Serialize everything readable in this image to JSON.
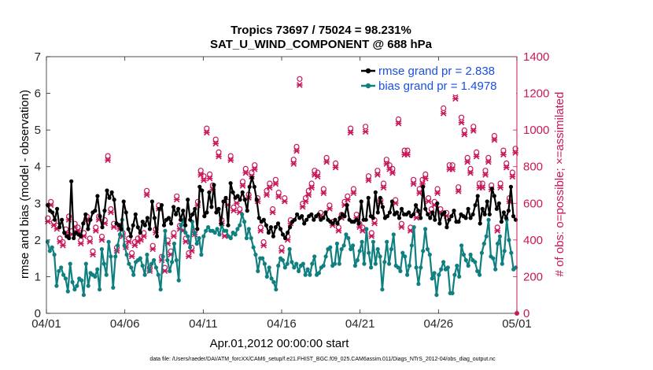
{
  "chart_data": {
    "type": "line",
    "title": "Tropics 73697 / 75024 = 98.231%",
    "subtitle": "SAT_U_WIND_COMPONENT @ 688 hPa",
    "xlabel": "Apr.01,2012 00:00:00 start",
    "ylabel_left": "rmse and bias (model - observation)",
    "ylabel_right": "# of obs: o=possible; ×=assimilated",
    "x_ticks": [
      "04/01",
      "04/06",
      "04/11",
      "04/16",
      "04/21",
      "04/26",
      "05/01"
    ],
    "x_range_days": [
      0,
      30
    ],
    "y_left_range": [
      0,
      7
    ],
    "y_left_ticks": [
      "0",
      "1",
      "2",
      "3",
      "4",
      "5",
      "6",
      "7"
    ],
    "y_right_range": [
      0,
      1400
    ],
    "y_right_ticks": [
      "0",
      "200",
      "400",
      "600",
      "800",
      "1000",
      "1200",
      "1400"
    ],
    "series": [
      {
        "name": "rmse grand pr = 2.838",
        "axis": "left",
        "color": "#000000",
        "values": [
          2.95,
          2.8,
          2.75,
          2.55,
          2.85,
          2.35,
          2.55,
          2.2,
          2.1,
          2.05,
          3.6,
          2.05,
          2.2,
          2.15,
          2.1,
          2.45,
          2.7,
          2.3,
          2.55,
          2.75,
          2.8,
          3.2,
          2.65,
          2.35,
          2.8,
          3.35,
          3.15,
          3.3,
          3.1,
          2.45,
          2.4,
          2.3,
          3.05,
          2.75,
          2.3,
          2.1,
          2.4,
          2.7,
          2.35,
          2.2,
          2.5,
          2.4,
          2.6,
          2.3,
          3.05,
          2.6,
          2.1,
          2.85,
          2.95,
          2.4,
          2.55,
          2.6,
          2.45,
          2.9,
          2.7,
          2.85,
          2.55,
          2.8,
          2.4,
          3.1,
          2.55,
          2.7,
          2.85,
          2.3,
          3.45,
          3.35,
          2.65,
          2.75,
          3.3,
          2.9,
          3.5,
          2.75,
          2.85,
          2.45,
          3.05,
          3.15,
          2.4,
          3.55,
          3.3,
          3.15,
          3.2,
          3.1,
          3.3,
          3.1,
          2.8,
          3.45,
          3.7,
          3.45,
          3.1,
          2.6,
          2.5,
          2.55,
          2.4,
          2.2,
          2.35,
          2.1,
          2.35,
          2.45,
          2.3,
          2.15,
          2.05,
          2.2,
          2.35,
          2.5,
          2.55,
          2.7,
          2.6,
          2.65,
          2.45,
          2.55,
          2.65,
          2.7,
          2.55,
          2.65,
          2.7,
          2.55,
          2.6,
          2.75,
          2.55,
          2.5,
          2.45,
          2.55,
          2.45,
          2.6,
          2.7,
          2.65,
          2.95,
          2.55,
          2.5,
          2.5,
          2.55,
          2.45,
          3.05,
          2.55,
          2.55,
          3.15,
          2.65,
          2.6,
          3.3,
          2.75,
          3.15,
          2.9,
          2.6,
          2.65,
          2.75,
          3.05,
          2.7,
          2.75,
          2.6,
          2.85,
          2.7,
          2.7,
          2.75,
          2.65,
          2.7,
          2.95,
          2.8,
          2.6,
          3.45,
          2.85,
          2.7,
          2.6,
          2.75,
          2.55,
          3.0,
          2.45,
          2.7,
          2.75,
          2.35,
          2.55,
          2.65,
          2.8,
          2.5,
          2.5,
          2.7,
          2.65,
          2.6,
          2.85,
          2.6,
          2.7,
          2.95,
          3.2,
          2.45,
          2.85,
          2.7,
          3.05,
          2.7,
          3.4,
          3.2,
          2.85,
          3.0,
          2.5,
          2.75,
          2.6,
          2.8,
          3.45,
          2.65,
          2.55
        ]
      },
      {
        "name": "bias grand pr = 1.4978",
        "axis": "left",
        "color": "#0f7f7f",
        "values": [
          1.95,
          1.7,
          1.8,
          1.6,
          0.75,
          1.15,
          1.25,
          1.05,
          0.95,
          0.6,
          1.35,
          0.85,
          0.65,
          0.75,
          0.95,
          0.9,
          0.5,
          1.35,
          0.75,
          1.1,
          1.05,
          1.0,
          1.2,
          0.65,
          1.75,
          1.35,
          1.05,
          1.95,
          1.55,
          0.7,
          1.55,
          1.85,
          2.15,
          2.55,
          1.85,
          1.6,
          1.35,
          1.25,
          1.05,
          1.4,
          1.45,
          1.5,
          1.3,
          1.05,
          1.6,
          1.15,
          1.35,
          1.45,
          1.25,
          1.05,
          0.65,
          1.55,
          2.25,
          1.45,
          1.15,
          1.4,
          1.9,
          1.45,
          0.9,
          2.4,
          2.55,
          2.2,
          2.1,
          1.8,
          2.5,
          2.2,
          1.9,
          2.05,
          1.6,
          2.1,
          2.25,
          2.35,
          2.25,
          2.25,
          2.2,
          2.3,
          2.15,
          2.4,
          2.25,
          2.25,
          2.1,
          2.05,
          2.2,
          2.15,
          2.3,
          2.4,
          2.7,
          2.5,
          2.05,
          2.3,
          2.05,
          1.8,
          1.6,
          1.15,
          1.5,
          1.5,
          1.35,
          1.0,
          1.25,
          0.95,
          0.85,
          0.65,
          1.3,
          1.5,
          1.45,
          1.25,
          1.35,
          1.75,
          1.4,
          1.25,
          1.35,
          1.15,
          1.3,
          1.35,
          1.05,
          1.2,
          1.05,
          1.35,
          1.55,
          1.05,
          1.1,
          1.25,
          1.3,
          1.55,
          1.75,
          1.8,
          1.3,
          1.35,
          1.9,
          1.35,
          1.75,
          1.85,
          2.15,
          2.05,
          1.75,
          1.85,
          1.3,
          1.45,
          1.7,
          1.95,
          1.35,
          2.3,
          1.65,
          1.25,
          1.95,
          1.35,
          1.75,
          1.55,
          0.65,
          1.4,
          1.95,
          1.35,
          1.75,
          2.15,
          1.3,
          1.25,
          1.15,
          1.65,
          1.55,
          1.05,
          1.3,
          1.85,
          2.35,
          1.25,
          0.8,
          1.25,
          1.7,
          2.3,
          1.75,
          1.6,
          0.95,
          1.1,
          0.5,
          1.05,
          1.2,
          1.4,
          1.2,
          1.25,
          0.55,
          0.55,
          1.05,
          1.3,
          1.0,
          1.85,
          1.6,
          1.45,
          1.3,
          1.6,
          1.45,
          1.4,
          1.15,
          1.05,
          1.65,
          1.9,
          2.1,
          2.55,
          1.55,
          1.5,
          1.2,
          1.9,
          2.1,
          1.35,
          1.7,
          2.55,
          2.0,
          1.65,
          1.2,
          1.25
        ]
      },
      {
        "name": "# of obs possible",
        "axis": "right",
        "color": "#c8175a",
        "marker": "o",
        "values": [
          510,
          600,
          490,
          470,
          400,
          380,
          450,
          520,
          440,
          480,
          460,
          390,
          430,
          520,
          400,
          330,
          460,
          520,
          410,
          500,
          850,
          560,
          480,
          350,
          470,
          430,
          370,
          400,
          320,
          380,
          400,
          410,
          430,
          660,
          240,
          360,
          450,
          580,
          300,
          240,
          390,
          330,
          430,
          630,
          470,
          460,
          400,
          320,
          350,
          440,
          600,
          770,
          740,
          1000,
          750,
          690,
          940,
          870,
          500,
          430,
          600,
          850,
          570,
          610,
          560,
          710,
          780,
          640,
          760,
          800,
          620,
          460,
          380,
          660,
          700,
          560,
          720,
          650,
          350,
          620,
          410,
          500,
          830,
          900,
          1270,
          590,
          620,
          660,
          700,
          770,
          760,
          540,
          670,
          840,
          580,
          490,
          810,
          460,
          530,
          600,
          630,
          1000,
          670,
          530,
          480,
          460,
          1010,
          740,
          430,
          500,
          770,
          610,
          700,
          830,
          800,
          780,
          610,
          1050,
          480,
          880,
          880,
          460,
          720,
          530,
          670,
          720,
          750,
          620,
          560,
          600,
          670,
          560,
          1110,
          540,
          800,
          800,
          1190,
          680,
          1060,
          990,
          840,
          780,
          1010,
          870,
          700,
          700,
          770,
          840,
          690,
          960,
          460,
          700,
          880,
          810,
          620,
          760,
          890
        ]
      },
      {
        "name": "# of obs assimilated",
        "axis": "right",
        "color": "#c8175a",
        "marker": "x",
        "values": [
          505,
          595,
          485,
          465,
          395,
          375,
          445,
          515,
          435,
          475,
          455,
          385,
          425,
          515,
          395,
          325,
          455,
          515,
          405,
          495,
          840,
          555,
          475,
          345,
          465,
          425,
          365,
          395,
          315,
          375,
          395,
          405,
          425,
          650,
          235,
          355,
          445,
          575,
          295,
          235,
          385,
          325,
          425,
          625,
          465,
          455,
          395,
          315,
          345,
          435,
          595,
          760,
          730,
          990,
          740,
          680,
          930,
          860,
          495,
          425,
          595,
          840,
          565,
          605,
          555,
          700,
          770,
          635,
          750,
          790,
          615,
          455,
          375,
          650,
          690,
          555,
          710,
          640,
          345,
          615,
          405,
          495,
          820,
          890,
          1250,
          585,
          615,
          650,
          690,
          760,
          750,
          535,
          660,
          830,
          575,
          485,
          800,
          455,
          525,
          595,
          625,
          990,
          660,
          525,
          475,
          455,
          995,
          730,
          425,
          495,
          760,
          605,
          690,
          820,
          790,
          770,
          605,
          1040,
          475,
          870,
          870,
          455,
          710,
          525,
          660,
          710,
          740,
          615,
          555,
          595,
          660,
          555,
          1095,
          535,
          790,
          790,
          1175,
          670,
          1045,
          980,
          830,
          770,
          1000,
          860,
          690,
          690,
          760,
          830,
          680,
          950,
          455,
          690,
          870,
          800,
          615,
          750,
          880
        ]
      }
    ],
    "legend": [
      "rmse grand pr = 2.838",
      "bias grand pr = 1.4978"
    ],
    "legend_position": "top-right",
    "footer": "data file: /Users/raeder/DAI/ATM_forcXX/CAM6_setup/f.e21.FHIST_BGC.f09_025.CAM6assim.011/Diags_NTrS_2012-04/obs_diag_output.nc"
  }
}
